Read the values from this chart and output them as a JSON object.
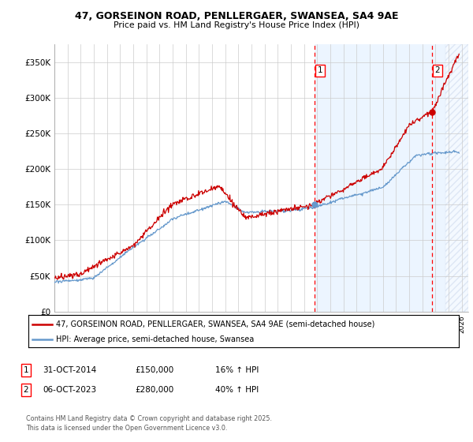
{
  "title": "47, GORSEINON ROAD, PENLLERGAER, SWANSEA, SA4 9AE",
  "subtitle": "Price paid vs. HM Land Registry's House Price Index (HPI)",
  "ylabel_ticks": [
    "£0",
    "£50K",
    "£100K",
    "£150K",
    "£200K",
    "£250K",
    "£300K",
    "£350K"
  ],
  "ytick_values": [
    0,
    50000,
    100000,
    150000,
    200000,
    250000,
    300000,
    350000
  ],
  "ylim": [
    0,
    375000
  ],
  "xlim_start": 1995.0,
  "xlim_end": 2026.5,
  "hpi_color": "#6699cc",
  "price_color": "#cc0000",
  "marker1_x": 2014.83,
  "marker1_y": 150000,
  "marker2_x": 2023.75,
  "marker2_y": 280000,
  "legend_line1": "47, GORSEINON ROAD, PENLLERGAER, SWANSEA, SA4 9AE (semi-detached house)",
  "legend_line2": "HPI: Average price, semi-detached house, Swansea",
  "footnote": "Contains HM Land Registry data © Crown copyright and database right 2025.\nThis data is licensed under the Open Government Licence v3.0.",
  "shaded_start": 2014.83,
  "hatch_start": 2024.75,
  "shaded_end": 2026.5,
  "bg_shade_color": "#ddeeff",
  "grid_color": "#cccccc"
}
